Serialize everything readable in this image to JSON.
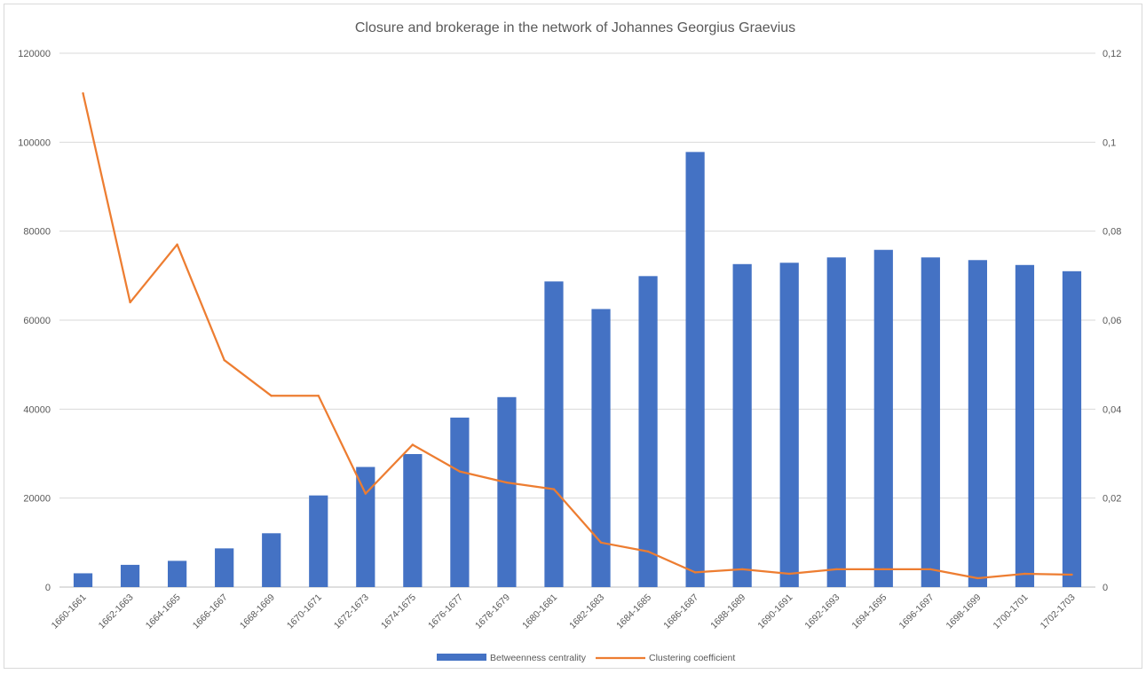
{
  "chart_data": {
    "type": "bar",
    "title": "Closure and brokerage in the network of Johannes Georgius Graevius",
    "categories": [
      "1660-1661",
      "1662-1663",
      "1664-1665",
      "1666-1667",
      "1668-1669",
      "1670-1671",
      "1672-1673",
      "1674-1675",
      "1676-1677",
      "1678-1679",
      "1680-1681",
      "1682-1683",
      "1684-1685",
      "1686-1687",
      "1688-1689",
      "1690-1691",
      "1692-1693",
      "1694-1695",
      "1696-1697",
      "1698-1699",
      "1700-1701",
      "1702-1703"
    ],
    "series": [
      {
        "name": "Betweenness centrality",
        "type": "bar",
        "axis": "left",
        "color": "#4472c4",
        "values": [
          3100,
          5000,
          5900,
          8700,
          12100,
          20600,
          27000,
          29900,
          38100,
          42700,
          68700,
          62500,
          69900,
          97800,
          72600,
          72900,
          74100,
          75800,
          74100,
          73500,
          72400,
          71000
        ]
      },
      {
        "name": "Clustering coefficient",
        "type": "line",
        "axis": "right",
        "color": "#ed7d31",
        "values": [
          0.111,
          0.064,
          0.077,
          0.051,
          0.043,
          0.043,
          0.021,
          0.032,
          0.026,
          0.0235,
          0.022,
          0.01,
          0.008,
          0.0033,
          0.004,
          0.003,
          0.004,
          0.004,
          0.004,
          0.002,
          0.003,
          0.0028
        ]
      }
    ],
    "y_left": {
      "min": 0,
      "max": 120000,
      "ticks": [
        "0",
        "20000",
        "40000",
        "60000",
        "80000",
        "100000",
        "120000"
      ]
    },
    "y_right": {
      "min": 0,
      "max": 0.12,
      "ticks": [
        "0",
        "0,02",
        "0,04",
        "0,06",
        "0,08",
        "0,1",
        "0,12"
      ]
    },
    "grid": true,
    "legend_position": "bottom"
  }
}
